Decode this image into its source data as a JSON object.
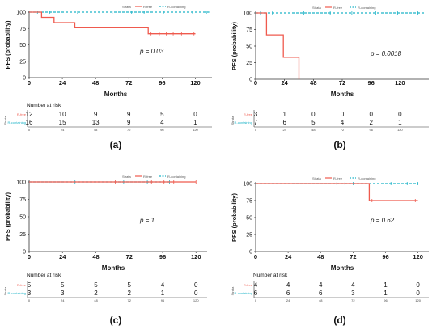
{
  "colors": {
    "rfree": "#ef5a4e",
    "rcont": "#1fb4c8",
    "axis": "#333333",
    "text": "#111111"
  },
  "chart_data": [
    {
      "panel_label": "(a)",
      "type": "line",
      "legend_title": "Strata",
      "series": [
        {
          "name": "R-free",
          "color": "#ef5a4e",
          "x": [
            0,
            9,
            9,
            18,
            18,
            33,
            33,
            86,
            86,
            120
          ],
          "y": [
            100,
            100,
            92,
            92,
            84,
            84,
            76,
            76,
            67,
            67
          ],
          "censor_x": [
            88,
            94,
            99,
            104,
            110,
            119
          ]
        },
        {
          "name": "R-containing",
          "color": "#1fb4c8",
          "x": [
            0,
            130
          ],
          "y": [
            100,
            100
          ],
          "censor_x": [
            6,
            15,
            35,
            51,
            60,
            74,
            83,
            97,
            106,
            118,
            128
          ]
        }
      ],
      "ylabel": "PFS (probability)",
      "xlabel": "Months",
      "xlim": [
        0,
        132
      ],
      "ylim": [
        0,
        100
      ],
      "xticks": [
        "0",
        "24",
        "48",
        "72",
        "96",
        "120"
      ],
      "yticks": [
        "0",
        "25",
        "50",
        "75",
        "100"
      ],
      "pvalue": "p = 0.03",
      "risk_table": {
        "title": "Number at risk",
        "strata_label": "Strata",
        "ticks": [
          "0",
          "24",
          "48",
          "72",
          "96",
          "120"
        ],
        "rows": [
          {
            "name": "R-free",
            "values": [
              "12",
              "10",
              "9",
              "9",
              "5",
              "0"
            ]
          },
          {
            "name": "R-containing",
            "values": [
              "16",
              "15",
              "13",
              "9",
              "4",
              "1"
            ]
          }
        ]
      }
    },
    {
      "panel_label": "(b)",
      "type": "line",
      "legend_title": "Strata",
      "series": [
        {
          "name": "R-free",
          "color": "#ef5a4e",
          "x": [
            0,
            9,
            9,
            23,
            23,
            36,
            36
          ],
          "y": [
            100,
            100,
            67,
            67,
            33,
            33,
            0
          ],
          "censor_x": []
        },
        {
          "name": "R-containing",
          "color": "#1fb4c8",
          "x": [
            0,
            140
          ],
          "y": [
            100,
            100
          ],
          "censor_x": [
            4,
            14,
            40,
            62,
            80,
            100,
            118,
            135
          ]
        }
      ],
      "ylabel": "PFS (probability)",
      "xlabel": "Months",
      "xlim": [
        0,
        144
      ],
      "ylim": [
        0,
        100
      ],
      "xticks": [
        "0",
        "24",
        "48",
        "72",
        "96",
        "120"
      ],
      "yticks": [
        "0",
        "25",
        "50",
        "75",
        "100"
      ],
      "pvalue": "p = 0.0018",
      "risk_table": {
        "title": "",
        "strata_label": "Strata",
        "ticks": [
          "0",
          "24",
          "48",
          "72",
          "96",
          "120"
        ],
        "rows": [
          {
            "name": "R-free",
            "values": [
              "3",
              "1",
              "0",
              "0",
              "0",
              "0"
            ]
          },
          {
            "name": "R-containing",
            "values": [
              "7",
              "6",
              "5",
              "4",
              "2",
              "1"
            ]
          }
        ]
      }
    },
    {
      "panel_label": "(c)",
      "type": "line",
      "legend_title": "Strata",
      "series": [
        {
          "name": "R-free",
          "color": "#ef5a4e",
          "x": [
            0,
            120
          ],
          "y": [
            100,
            100
          ],
          "censor_x": [
            62,
            88,
            97,
            104,
            120
          ]
        },
        {
          "name": "R-containing",
          "color": "#1fb4c8",
          "x": [
            0,
            102
          ],
          "y": [
            100,
            100
          ],
          "censor_x": [
            33,
            68,
            85,
            101
          ]
        }
      ],
      "ylabel": "PFS (probability)",
      "xlabel": "Months",
      "xlim": [
        0,
        128
      ],
      "ylim": [
        0,
        100
      ],
      "xticks": [
        "0",
        "24",
        "48",
        "72",
        "96",
        "120"
      ],
      "yticks": [
        "0",
        "25",
        "50",
        "75",
        "100"
      ],
      "pvalue": "p = 1",
      "risk_table": {
        "title": "Number at risk",
        "strata_label": "Strata",
        "ticks": [
          "0",
          "24",
          "48",
          "72",
          "96",
          "120"
        ],
        "rows": [
          {
            "name": "R-free",
            "values": [
              "5",
              "5",
              "5",
              "5",
              "4",
              "0"
            ]
          },
          {
            "name": "R-containing",
            "values": [
              "3",
              "3",
              "2",
              "2",
              "1",
              "0"
            ]
          }
        ]
      }
    },
    {
      "panel_label": "(d)",
      "type": "line",
      "legend_title": "Strata",
      "series": [
        {
          "name": "R-free",
          "color": "#ef5a4e",
          "x": [
            0,
            84,
            84,
            120
          ],
          "y": [
            100,
            100,
            75,
            75
          ],
          "censor_x": [
            86,
            118
          ]
        },
        {
          "name": "R-containing",
          "color": "#1fb4c8",
          "x": [
            0,
            120
          ],
          "y": [
            100,
            100
          ],
          "censor_x": [
            60,
            66,
            72,
            100,
            112,
            120
          ]
        }
      ],
      "ylabel": "PFS (probability)",
      "xlabel": "Months",
      "xlim": [
        0,
        128
      ],
      "ylim": [
        0,
        100
      ],
      "xticks": [
        "0",
        "24",
        "48",
        "72",
        "96",
        "120"
      ],
      "yticks": [
        "0",
        "25",
        "50",
        "75",
        "100"
      ],
      "pvalue": "p = 0.62",
      "risk_table": {
        "title": "Number at risk",
        "strata_label": "Strata",
        "ticks": [
          "0",
          "24",
          "48",
          "72",
          "96",
          "120"
        ],
        "rows": [
          {
            "name": "R-free",
            "values": [
              "4",
              "4",
              "4",
              "4",
              "1",
              "0"
            ]
          },
          {
            "name": "R-containing",
            "values": [
              "6",
              "6",
              "6",
              "3",
              "1",
              "0"
            ]
          }
        ]
      }
    }
  ]
}
